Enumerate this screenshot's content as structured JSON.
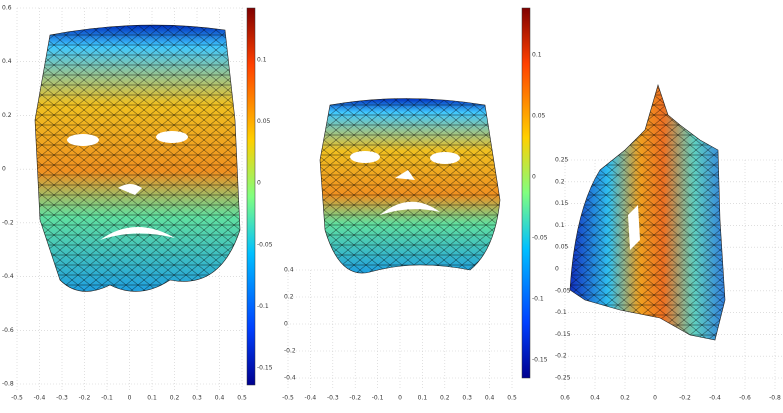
{
  "panels": [
    {
      "y_ticks": [
        "0.6",
        "0.4",
        "0.2",
        "0",
        "-0.2",
        "-0.4",
        "-0.6",
        "-0.8"
      ],
      "x_ticks": [
        "-0.5",
        "-0.4",
        "-0.3",
        "-0.2",
        "-0.1",
        "0",
        "0.1",
        "0.2",
        "0.3",
        "0.4",
        "0.5"
      ],
      "colorbar_ticks": [
        "0.1",
        "0.05",
        "0",
        "-0.05",
        "-0.1",
        "-0.15"
      ]
    },
    {
      "y_ticks": [
        "0.4",
        "0.2",
        "0",
        "-0.2",
        "-0.4"
      ],
      "x_ticks": [
        "-0.5",
        "-0.4",
        "-0.3",
        "-0.2",
        "-0.1",
        "0",
        "0.1",
        "0.2",
        "0.3",
        "0.4",
        "0.5"
      ],
      "colorbar_ticks": [
        "0.1",
        "0.05",
        "0",
        "-0.05",
        "-0.1",
        "-0.15"
      ]
    },
    {
      "y_ticks": [
        "0.25",
        "0.2",
        "0.15",
        "0.1",
        "0.05",
        "0",
        "-0.05",
        "-0.1",
        "-0.15",
        "-0.2",
        "-0.25"
      ],
      "x_ticks": [
        "0.6",
        "0.4",
        "0.2",
        "0",
        "-0.2",
        "-0.4",
        "-0.6",
        "-0.8"
      ]
    }
  ]
}
